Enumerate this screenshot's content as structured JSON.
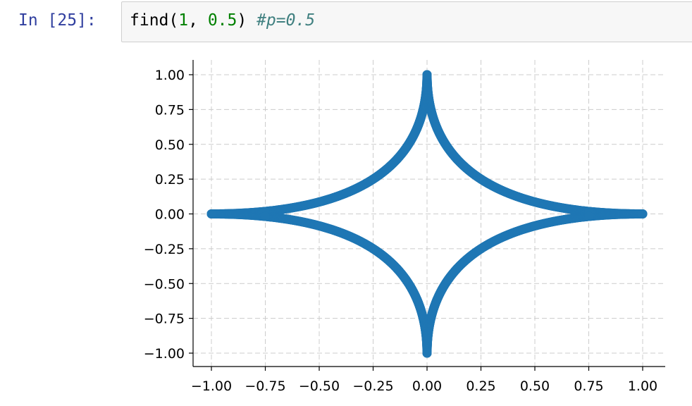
{
  "cell": {
    "prompt": "In [25]:",
    "code": {
      "func": "find(",
      "arg1": "1",
      "sep": ", ",
      "arg2": "0.5",
      "close": ") ",
      "comment": "#p=0.5"
    }
  },
  "chart_data": {
    "type": "scatter",
    "title": "",
    "xlabel": "",
    "ylabel": "",
    "xlim": [
      -1.1,
      1.1
    ],
    "ylim": [
      -1.08,
      1.08
    ],
    "x_ticks": [
      "−1.00",
      "−0.75",
      "−0.50",
      "−0.25",
      "0.00",
      "0.25",
      "0.50",
      "0.75",
      "1.00"
    ],
    "y_ticks": [
      "1.00",
      "0.75",
      "0.50",
      "0.25",
      "0.00",
      "−0.25",
      "−0.50",
      "−0.75",
      "−1.00"
    ],
    "grid": true,
    "series": [
      {
        "color": "#1f77b4",
        "shape": "astroid |x|^0.5 + |y|^0.5 = 1",
        "x": [
          1.0,
          0.75,
          0.5,
          0.25,
          0.1,
          0.0,
          -0.1,
          -0.25,
          -0.5,
          -0.75,
          -1.0,
          -0.75,
          -0.5,
          -0.25,
          -0.1,
          0.0,
          0.1,
          0.25,
          0.5,
          0.75
        ],
        "y": [
          0.0,
          0.018,
          0.086,
          0.25,
          0.468,
          1.0,
          0.468,
          0.25,
          0.086,
          0.018,
          0.0,
          -0.018,
          -0.086,
          -0.25,
          -0.468,
          -1.0,
          -0.468,
          -0.25,
          -0.086,
          -0.018
        ]
      }
    ]
  }
}
